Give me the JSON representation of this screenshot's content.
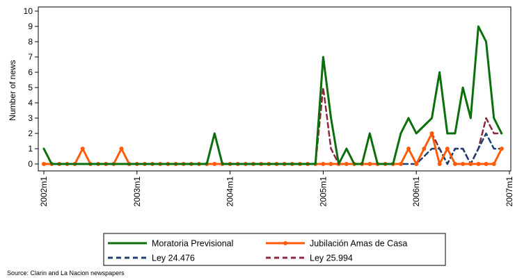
{
  "chart_data": {
    "type": "line",
    "title": "",
    "xlabel": "",
    "ylabel": "Number of news",
    "ylim": [
      0,
      10
    ],
    "yticks": [
      0,
      1,
      2,
      3,
      4,
      5,
      6,
      7,
      8,
      9,
      10
    ],
    "xlim": [
      "2002m1",
      "2007m1"
    ],
    "xticks": [
      "2002m1",
      "2003m1",
      "2004m1",
      "2005m1",
      "2006m1",
      "2007m1"
    ],
    "grid": false,
    "legend_position": "bottom",
    "x": [
      "2002m1",
      "2002m2",
      "2002m3",
      "2002m4",
      "2002m5",
      "2002m6",
      "2002m7",
      "2002m8",
      "2002m9",
      "2002m10",
      "2002m11",
      "2002m12",
      "2003m1",
      "2003m2",
      "2003m3",
      "2003m4",
      "2003m5",
      "2003m6",
      "2003m7",
      "2003m8",
      "2003m9",
      "2003m10",
      "2003m11",
      "2003m12",
      "2004m1",
      "2004m2",
      "2004m3",
      "2004m4",
      "2004m5",
      "2004m6",
      "2004m7",
      "2004m8",
      "2004m9",
      "2004m10",
      "2004m11",
      "2004m12",
      "2005m1",
      "2005m2",
      "2005m3",
      "2005m4",
      "2005m5",
      "2005m6",
      "2005m7",
      "2005m8",
      "2005m9",
      "2005m10",
      "2005m11",
      "2005m12",
      "2006m1",
      "2006m2",
      "2006m3",
      "2006m4",
      "2006m5",
      "2006m6",
      "2006m7",
      "2006m8",
      "2006m9",
      "2006m10",
      "2006m11",
      "2006m12"
    ],
    "series": [
      {
        "name": "Moratoria Previsional",
        "color": "#0a6e0a",
        "style": "solid",
        "marker": "none",
        "values": [
          1,
          0,
          0,
          0,
          0,
          0,
          0,
          0,
          0,
          0,
          0,
          0,
          0,
          0,
          0,
          0,
          0,
          0,
          0,
          0,
          0,
          0,
          2,
          0,
          0,
          0,
          0,
          0,
          0,
          0,
          0,
          0,
          0,
          0,
          0,
          0,
          7,
          3,
          0,
          1,
          0,
          0,
          2,
          0,
          0,
          0,
          2,
          3,
          2,
          2.5,
          3,
          6,
          2,
          2,
          5,
          3,
          9,
          8,
          3,
          2
        ]
      },
      {
        "name": "Jubilación Amas de Casa",
        "color": "#ff5a0a",
        "style": "solid",
        "marker": "dot",
        "values": [
          0,
          0,
          0,
          0,
          0,
          1,
          0,
          0,
          0,
          0,
          1,
          0,
          0,
          0,
          0,
          0,
          0,
          0,
          0,
          0,
          0,
          0,
          0,
          0,
          0,
          0,
          0,
          0,
          0,
          0,
          0,
          0,
          0,
          0,
          0,
          0,
          0,
          0,
          0,
          0,
          0,
          0,
          0,
          0,
          0,
          0,
          0,
          1,
          0,
          1,
          2,
          0,
          1,
          0,
          0,
          0,
          0,
          0,
          0,
          1
        ]
      },
      {
        "name": "Ley 24.476",
        "color": "#1c3f74",
        "style": "dash",
        "marker": "none",
        "values": [
          0,
          0,
          0,
          0,
          0,
          0,
          0,
          0,
          0,
          0,
          0,
          0,
          0,
          0,
          0,
          0,
          0,
          0,
          0,
          0,
          0,
          0,
          0,
          0,
          0,
          0,
          0,
          0,
          0,
          0,
          0,
          0,
          0,
          0,
          0,
          0,
          0,
          0,
          0,
          0,
          0,
          0,
          0,
          0,
          0,
          0,
          0,
          0,
          0,
          0.5,
          1,
          1,
          0,
          1,
          1,
          0,
          1,
          2,
          1,
          1
        ]
      },
      {
        "name": "Ley 25.994",
        "color": "#8b2a3c",
        "style": "dash",
        "marker": "none",
        "values": [
          0,
          0,
          0,
          0,
          0,
          0,
          0,
          0,
          0,
          0,
          0,
          0,
          0,
          0,
          0,
          0,
          0,
          0,
          0,
          0,
          0,
          0,
          0,
          0,
          0,
          0,
          0,
          0,
          0,
          0,
          0,
          0,
          0,
          0,
          0,
          0,
          5,
          1,
          0,
          1,
          0,
          0,
          0,
          0,
          0,
          0,
          0,
          1,
          0,
          1,
          2,
          1,
          0,
          1,
          1,
          0,
          1,
          3,
          2,
          2
        ]
      }
    ],
    "note": "Source: Clarin and La Nacion newspapers"
  }
}
